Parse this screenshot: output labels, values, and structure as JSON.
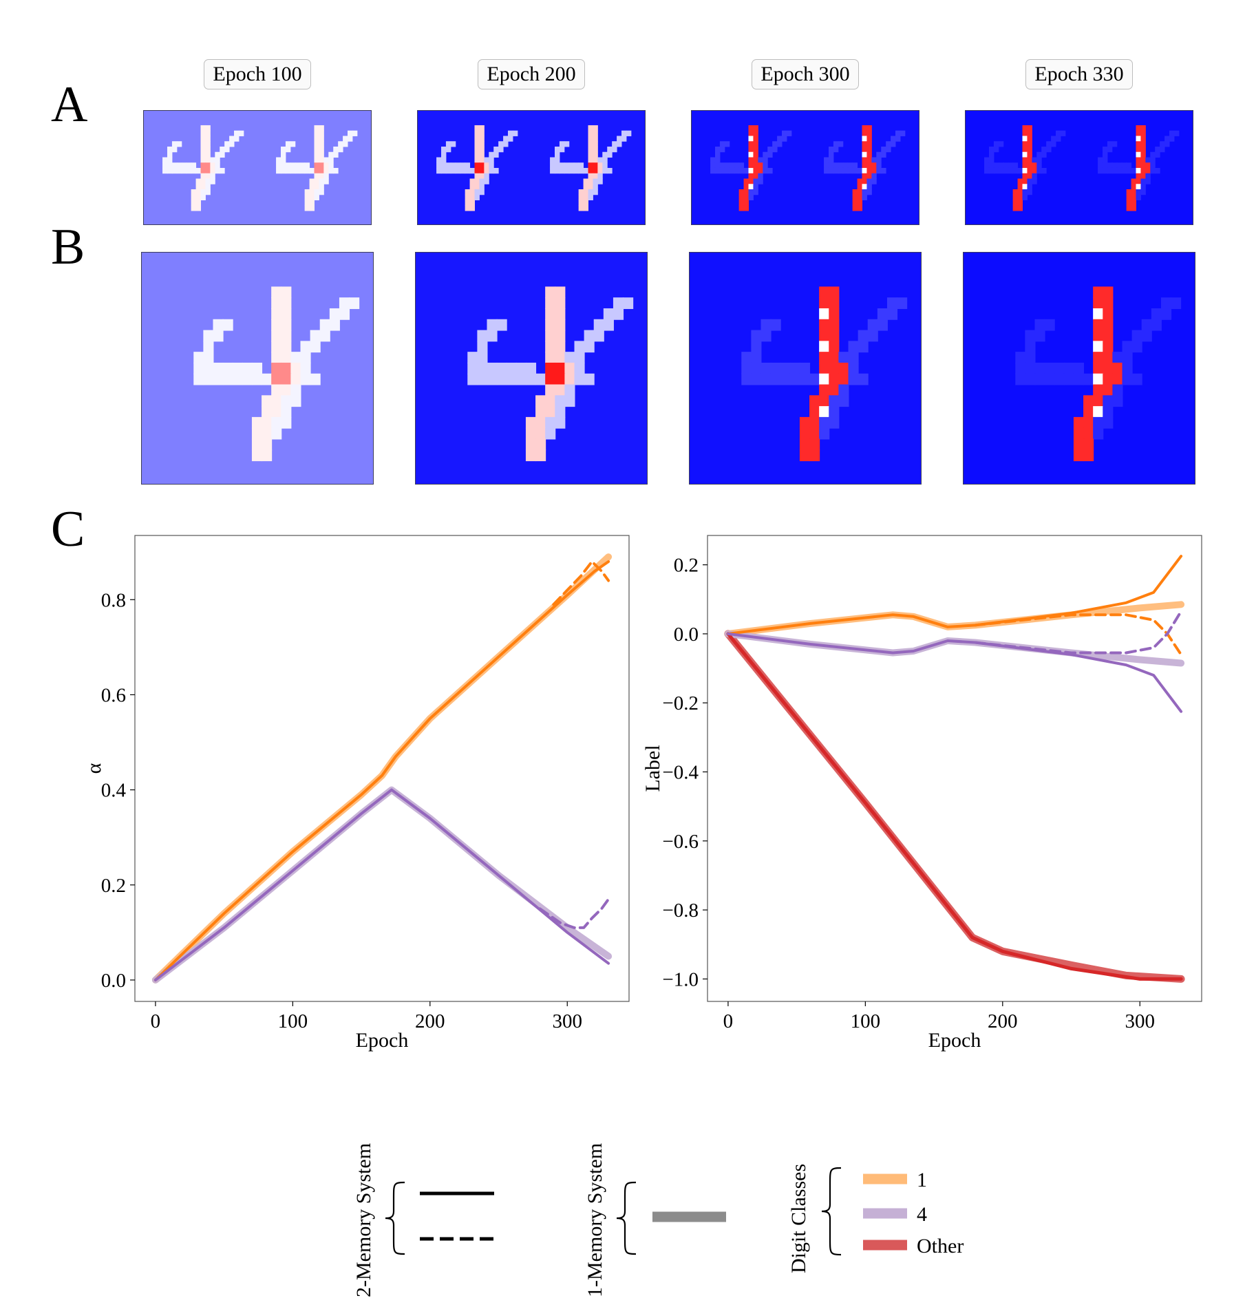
{
  "panel_labels": {
    "a": "A",
    "b": "B",
    "c": "C"
  },
  "epoch_tags": [
    "Epoch 100",
    "Epoch 200",
    "Epoch 300",
    "Epoch 330"
  ],
  "colors": {
    "orange": "#ff7f0e",
    "orange_light": "#ffbb78",
    "purple": "#9467bd",
    "purple_light": "#c5b0d5",
    "red": "#d62728",
    "gray": "#8c8c8c",
    "heat_backgrounds": [
      "#7f7fff",
      "#1717ff",
      "#1010ff",
      "#0c0cff"
    ]
  },
  "heatmaps": {
    "description_levels": [
      "epoch 100",
      "epoch 200",
      "epoch 300",
      "epoch 330"
    ]
  },
  "chart_data": [
    {
      "type": "line",
      "xlabel": "Epoch",
      "ylabel": "α",
      "xlim": [
        -15,
        345
      ],
      "ylim": [
        -0.045,
        0.935
      ],
      "xticks": [
        0,
        100,
        200,
        300
      ],
      "yticks": [
        0.0,
        0.2,
        0.4,
        0.6,
        0.8
      ],
      "ytick_labels": [
        "0.0",
        "0.2",
        "0.4",
        "0.6",
        "0.8"
      ],
      "grid": false,
      "series": [
        {
          "color": "orange",
          "style": "one-memory",
          "x": [
            0,
            50,
            100,
            150,
            165,
            175,
            200,
            250,
            300,
            330
          ],
          "y": [
            0,
            0.14,
            0.27,
            0.39,
            0.43,
            0.47,
            0.55,
            0.68,
            0.81,
            0.89
          ]
        },
        {
          "color": "orange",
          "style": "two-memory-solid",
          "x": [
            0,
            50,
            100,
            150,
            165,
            175,
            200,
            250,
            300,
            320,
            330
          ],
          "y": [
            0,
            0.14,
            0.27,
            0.39,
            0.43,
            0.47,
            0.55,
            0.68,
            0.81,
            0.86,
            0.88
          ]
        },
        {
          "color": "orange",
          "style": "two-memory-dashed",
          "x": [
            290,
            300,
            310,
            318,
            325,
            330
          ],
          "y": [
            0.79,
            0.82,
            0.85,
            0.88,
            0.86,
            0.84
          ]
        },
        {
          "color": "purple",
          "style": "one-memory",
          "x": [
            0,
            50,
            100,
            150,
            172,
            200,
            250,
            300,
            330
          ],
          "y": [
            0,
            0.11,
            0.23,
            0.35,
            0.4,
            0.34,
            0.22,
            0.11,
            0.05
          ]
        },
        {
          "color": "purple",
          "style": "two-memory-solid",
          "x": [
            0,
            50,
            100,
            150,
            172,
            200,
            250,
            300,
            330
          ],
          "y": [
            0,
            0.11,
            0.23,
            0.35,
            0.4,
            0.34,
            0.22,
            0.1,
            0.035
          ]
        },
        {
          "color": "purple",
          "style": "two-memory-dashed",
          "x": [
            280,
            295,
            305,
            312,
            318,
            325,
            330
          ],
          "y": [
            0.15,
            0.12,
            0.11,
            0.11,
            0.13,
            0.15,
            0.17
          ]
        }
      ]
    },
    {
      "type": "line",
      "xlabel": "Epoch",
      "ylabel": "Label",
      "xlim": [
        -15,
        345
      ],
      "ylim": [
        -1.065,
        0.285
      ],
      "xticks": [
        0,
        100,
        200,
        300
      ],
      "yticks": [
        0.2,
        0.0,
        -0.2,
        -0.4,
        -0.6,
        -0.8,
        -1.0
      ],
      "ytick_labels": [
        "0.2",
        "0.0",
        "−0.2",
        "−0.4",
        "−0.6",
        "−0.8",
        "−1.0"
      ],
      "grid": false,
      "series": [
        {
          "color": "red",
          "style": "one-memory",
          "x": [
            0,
            100,
            178,
            200,
            250,
            290,
            330
          ],
          "y": [
            0,
            -0.49,
            -0.88,
            -0.92,
            -0.96,
            -0.99,
            -1.0
          ]
        },
        {
          "color": "red",
          "style": "two-memory-solid",
          "x": [
            0,
            100,
            178,
            200,
            250,
            300,
            330
          ],
          "y": [
            0,
            -0.49,
            -0.88,
            -0.92,
            -0.97,
            -1.0,
            -1.0
          ]
        },
        {
          "color": "orange",
          "style": "one-memory",
          "x": [
            0,
            60,
            120,
            135,
            160,
            180,
            250,
            300,
            330
          ],
          "y": [
            0,
            0.03,
            0.055,
            0.05,
            0.02,
            0.025,
            0.055,
            0.075,
            0.085
          ]
        },
        {
          "color": "orange",
          "style": "two-memory-solid",
          "x": [
            0,
            60,
            120,
            135,
            160,
            180,
            250,
            290,
            310,
            330
          ],
          "y": [
            0,
            0.03,
            0.055,
            0.05,
            0.02,
            0.025,
            0.06,
            0.09,
            0.12,
            0.225
          ]
        },
        {
          "color": "orange",
          "style": "two-memory-dashed",
          "x": [
            180,
            250,
            290,
            310,
            320,
            330
          ],
          "y": [
            0.025,
            0.055,
            0.055,
            0.04,
            0.0,
            -0.06
          ]
        },
        {
          "color": "purple",
          "style": "one-memory",
          "x": [
            0,
            60,
            120,
            135,
            160,
            180,
            250,
            300,
            330
          ],
          "y": [
            0,
            -0.03,
            -0.055,
            -0.05,
            -0.02,
            -0.025,
            -0.055,
            -0.075,
            -0.085
          ]
        },
        {
          "color": "purple",
          "style": "two-memory-solid",
          "x": [
            0,
            60,
            120,
            135,
            160,
            180,
            250,
            290,
            310,
            330
          ],
          "y": [
            0,
            -0.03,
            -0.055,
            -0.05,
            -0.02,
            -0.025,
            -0.06,
            -0.09,
            -0.12,
            -0.225
          ]
        },
        {
          "color": "purple",
          "style": "two-memory-dashed",
          "x": [
            180,
            250,
            290,
            310,
            320,
            330
          ],
          "y": [
            -0.025,
            -0.055,
            -0.055,
            -0.04,
            0.0,
            0.065
          ]
        }
      ]
    }
  ],
  "legend": {
    "two_memory_label": "2-Memory System",
    "one_memory_label": "1-Memory System",
    "digit_classes_label": "Digit Classes",
    "digit_classes": [
      {
        "label": "1",
        "color": "orange_light"
      },
      {
        "label": "4",
        "color": "purple_light"
      },
      {
        "label": "Other",
        "color": "red"
      }
    ]
  }
}
